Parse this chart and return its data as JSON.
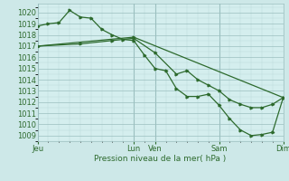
{
  "background_color": "#cde8e8",
  "plot_bg_color": "#d4eeee",
  "grid_major_color": "#9bbfbf",
  "grid_minor_color": "#b8d8d8",
  "line_color": "#2d6a2d",
  "xlabel": "Pression niveau de la mer( hPa )",
  "ylim": [
    1008.5,
    1020.8
  ],
  "yticks": [
    1009,
    1010,
    1011,
    1012,
    1013,
    1014,
    1015,
    1016,
    1017,
    1018,
    1019,
    1020
  ],
  "xtick_labels": [
    "Jeu",
    "Lun",
    "Ven",
    "Sam",
    "Dim"
  ],
  "xtick_positions": [
    0,
    9,
    11,
    17,
    23
  ],
  "vline_positions": [
    0,
    9,
    11,
    17,
    23
  ],
  "line1_x": [
    0,
    1,
    2,
    3,
    4,
    5,
    6,
    7,
    8,
    9,
    10,
    11,
    12,
    13,
    14,
    15,
    16,
    17,
    18,
    19,
    20,
    21,
    22,
    23
  ],
  "line1_y": [
    1018.8,
    1019.0,
    1019.1,
    1020.2,
    1019.6,
    1019.5,
    1018.5,
    1018.0,
    1017.6,
    1017.5,
    1016.2,
    1015.0,
    1014.8,
    1013.2,
    1012.5,
    1012.5,
    1012.7,
    1011.7,
    1010.5,
    1009.5,
    1009.0,
    1009.1,
    1009.3,
    1012.4
  ],
  "line2_x": [
    0,
    4,
    7,
    9,
    11,
    13,
    14,
    15,
    16,
    17,
    18,
    19,
    20,
    21,
    22,
    23
  ],
  "line2_y": [
    1017.0,
    1017.2,
    1017.5,
    1017.7,
    1016.4,
    1014.5,
    1014.8,
    1014.0,
    1013.5,
    1013.0,
    1012.2,
    1011.8,
    1011.5,
    1011.5,
    1011.8,
    1012.4
  ],
  "line3_x": [
    0,
    9,
    23
  ],
  "line3_y": [
    1017.0,
    1017.8,
    1012.4
  ]
}
